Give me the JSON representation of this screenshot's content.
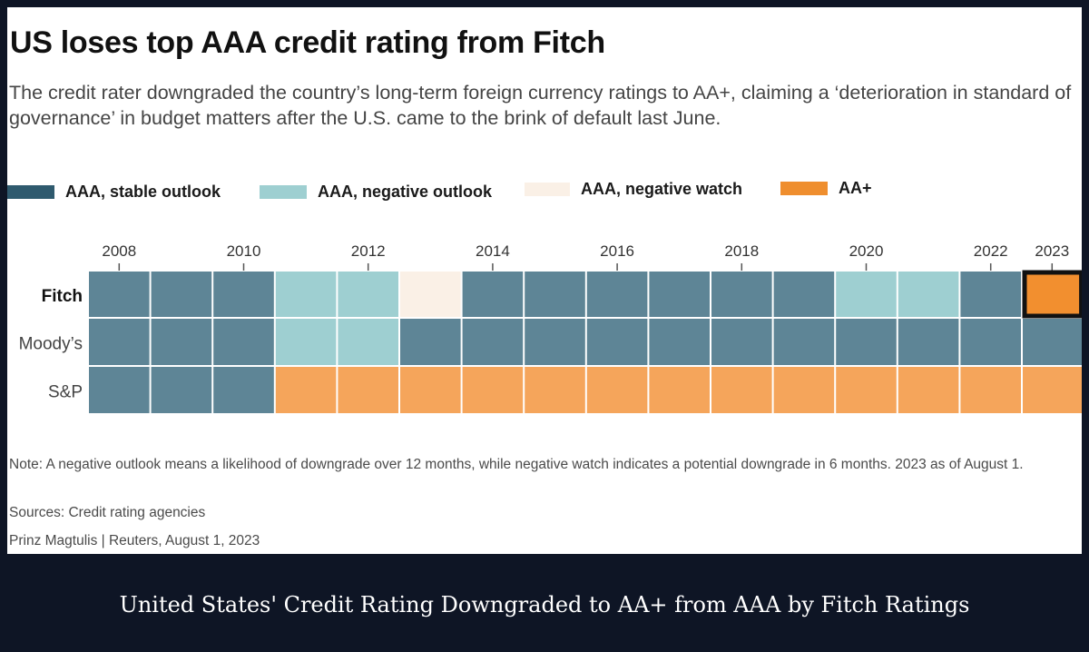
{
  "title": "US loses top AAA credit rating from Fitch",
  "subtitle": "The credit rater downgraded the country’s long-term foreign currency ratings to AA+, claiming a ‘deterioration in standard of governance’ in budget matters after the U.S. came to the brink of default last June.",
  "colors": {
    "stable": "#5e8596",
    "negative_outlook": "#9ecfd1",
    "negative_watch": "#faf0e6",
    "aa_plus": "#f5a55b",
    "aa_plus_highlight": "#f28f2f",
    "legend_stable": "#2f5a6e",
    "legend_aa_plus": "#ef8e2e"
  },
  "legend": [
    {
      "label": "AAA, stable outlook",
      "key": "stable"
    },
    {
      "label": "AAA, negative outlook",
      "key": "negative_outlook"
    },
    {
      "label": "AAA, negative watch",
      "key": "negative_watch"
    },
    {
      "label": "AA+",
      "key": "aa_plus"
    }
  ],
  "chart_data": {
    "type": "heatmap",
    "columns": 16,
    "x_tick_labels": [
      "2008",
      "2010",
      "2012",
      "2014",
      "2016",
      "2018",
      "2020",
      "2022",
      "2023"
    ],
    "rows": [
      {
        "label": "Fitch",
        "bold": true,
        "cells": [
          "stable",
          "stable",
          "stable",
          "negative_outlook",
          "negative_outlook",
          "negative_watch",
          "stable",
          "stable",
          "stable",
          "stable",
          "stable",
          "stable",
          "negative_outlook",
          "negative_outlook",
          "stable",
          "aa_plus"
        ]
      },
      {
        "label": "Moody’s",
        "bold": false,
        "cells": [
          "stable",
          "stable",
          "stable",
          "negative_outlook",
          "negative_outlook",
          "stable",
          "stable",
          "stable",
          "stable",
          "stable",
          "stable",
          "stable",
          "stable",
          "stable",
          "stable",
          "stable"
        ]
      },
      {
        "label": "S&P",
        "bold": false,
        "cells": [
          "stable",
          "stable",
          "stable",
          "aa_plus",
          "aa_plus",
          "aa_plus",
          "aa_plus",
          "aa_plus",
          "aa_plus",
          "aa_plus",
          "aa_plus",
          "aa_plus",
          "aa_plus",
          "aa_plus",
          "aa_plus",
          "aa_plus"
        ]
      }
    ],
    "highlight": {
      "row": "Fitch",
      "year": "2023"
    }
  },
  "note": "Note: A negative outlook means a likelihood of downgrade over 12 months, while negative watch indicates a potential downgrade in 6 months. 2023 as of August 1.",
  "sources": "Sources: Credit rating agencies",
  "credit": "Prinz Magtulis |  Reuters, August 1, 2023",
  "caption": "United States' Credit Rating Downgraded to AA+ from AAA by Fitch Ratings"
}
